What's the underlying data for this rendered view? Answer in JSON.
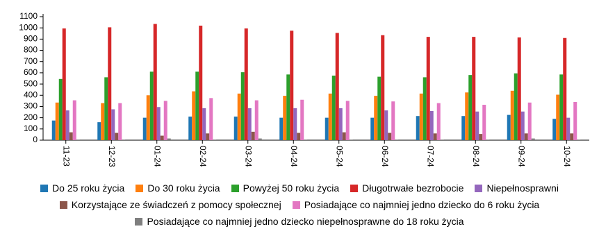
{
  "chart_data": {
    "type": "bar",
    "categories": [
      "11-23",
      "12-23",
      "01-24",
      "02-24",
      "03-24",
      "04-24",
      "05-24",
      "06-24",
      "07-24",
      "08-24",
      "09-24",
      "10-24"
    ],
    "series": [
      {
        "name": "Do 25 roku życia",
        "color": "#1f77b4",
        "values": [
          175,
          160,
          200,
          210,
          210,
          200,
          200,
          200,
          215,
          215,
          225,
          190
        ]
      },
      {
        "name": "Do 30 roku życia",
        "color": "#ff7f0e",
        "values": [
          335,
          330,
          400,
          435,
          415,
          395,
          415,
          395,
          415,
          425,
          440,
          405
        ]
      },
      {
        "name": "Powyżej 50 roku życia",
        "color": "#2ca02c",
        "values": [
          545,
          560,
          610,
          610,
          605,
          585,
          575,
          565,
          560,
          580,
          595,
          585
        ]
      },
      {
        "name": "Długotrwałe bezrobocie",
        "color": "#d62728",
        "values": [
          995,
          1005,
          1035,
          1020,
          995,
          975,
          955,
          935,
          920,
          920,
          915,
          910
        ]
      },
      {
        "name": "Niepełnosprawni",
        "color": "#9467bd",
        "values": [
          265,
          275,
          295,
          285,
          285,
          285,
          285,
          265,
          260,
          255,
          255,
          200
        ]
      },
      {
        "name": "Korzystające ze świadczeń z pomocy społecznej",
        "color": "#8c564b",
        "values": [
          70,
          65,
          40,
          60,
          75,
          65,
          70,
          65,
          60,
          55,
          60,
          60
        ]
      },
      {
        "name": "Posiadające co najmniej jedno dziecko do 6 roku życia",
        "color": "#e377c2",
        "values": [
          355,
          330,
          350,
          375,
          355,
          360,
          350,
          345,
          330,
          315,
          335,
          340
        ]
      },
      {
        "name": "Posiadające co najmniej jedno dziecko niepełnosprawne do 18 roku życia",
        "color": "#7f7f7f",
        "values": [
          5,
          5,
          15,
          5,
          15,
          5,
          5,
          5,
          5,
          5,
          15,
          5
        ]
      }
    ],
    "ylim": [
      0,
      1100
    ],
    "yticks": [
      0,
      100,
      200,
      300,
      400,
      500,
      600,
      700,
      800,
      900,
      1000,
      1100
    ],
    "grid": false
  }
}
